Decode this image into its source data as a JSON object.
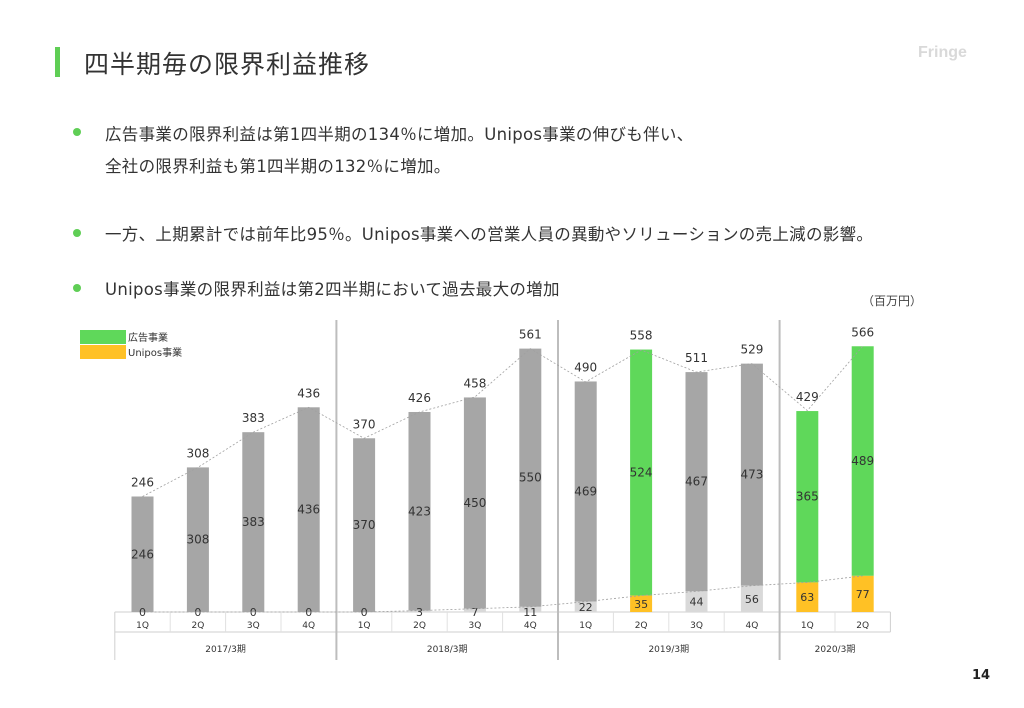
{
  "slide": {
    "title": "四半期毎の限界利益推移",
    "brand": "Fringe",
    "bullets": [
      {
        "line1": "広告事業の限界利益は第1四半期の134％に増加。Unipos事業の伸びも伴い、",
        "line2": "全社の限界利益も第1四半期の132％に増加。"
      },
      {
        "line1": "一方、上期累計では前年比95％。Unipos事業への営業人員の異動やソリューションの売上減の影響。"
      },
      {
        "line1": "Unipos事業の限界利益は第2四半期において過去最大の増加"
      }
    ],
    "unit": "（百万円）",
    "page_number": "14"
  },
  "colors": {
    "accent": "#5fce55",
    "ad_highlight": "#5fd85a",
    "ad_gray": "#a6a6a6",
    "unipos": "#ffc125",
    "unipos_gray": "#d9d9d9"
  },
  "chart_data": {
    "type": "bar",
    "stacked": true,
    "categories": [
      "1Q",
      "2Q",
      "3Q",
      "4Q",
      "1Q",
      "2Q",
      "3Q",
      "4Q",
      "1Q",
      "2Q",
      "3Q",
      "4Q",
      "1Q",
      "2Q"
    ],
    "groups": [
      {
        "label": "2017/3期",
        "quarters": 4
      },
      {
        "label": "2018/3期",
        "quarters": 4
      },
      {
        "label": "2019/3期",
        "quarters": 4
      },
      {
        "label": "2020/3期",
        "quarters": 2
      }
    ],
    "series": [
      {
        "name": "広告事業",
        "values": [
          246,
          308,
          383,
          436,
          370,
          423,
          450,
          550,
          469,
          524,
          467,
          473,
          365,
          489
        ]
      },
      {
        "name": "Unipos事業",
        "values": [
          0,
          0,
          0,
          0,
          0,
          3,
          7,
          11,
          22,
          35,
          44,
          56,
          63,
          77
        ]
      }
    ],
    "totals": [
      246,
      308,
      383,
      436,
      370,
      426,
      458,
      561,
      490,
      558,
      511,
      529,
      429,
      566
    ],
    "highlighted_bars": [
      9,
      12,
      13
    ],
    "ylim": [
      0,
      600
    ]
  }
}
